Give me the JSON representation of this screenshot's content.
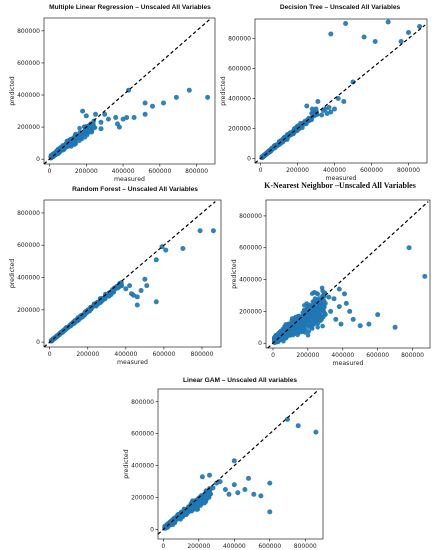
{
  "figure": {
    "chart_data": [
      {
        "type": "scatter",
        "title": "Multiple Linear Regression – Unscaled All Variables",
        "xlabel": "measured",
        "ylabel": "predicted",
        "xlim": [
          -30000,
          900000
        ],
        "ylim": [
          -30000,
          880000
        ],
        "xticks": [
          0,
          200000,
          400000,
          600000,
          800000
        ],
        "yticks": [
          0,
          200000,
          400000,
          600000,
          800000
        ],
        "tick_labels_x": [
          "0",
          "200000",
          "400000",
          "600000",
          "800000"
        ],
        "tick_labels_y": [
          "0",
          "200000",
          "400000",
          "600000",
          "800000"
        ],
        "reference_line": "y = x (dashed)",
        "cloud": {
          "n": 440,
          "xmax": 240000,
          "slope": 0.85,
          "spread": 0.22,
          "offset": 8000
        },
        "outliers": [
          [
            280000,
            230000
          ],
          [
            320000,
            250000
          ],
          [
            360000,
            260000
          ],
          [
            370000,
            220000
          ],
          [
            380000,
            200000
          ],
          [
            300000,
            280000
          ],
          [
            250000,
            280000
          ],
          [
            400000,
            250000
          ],
          [
            420000,
            260000
          ],
          [
            460000,
            260000
          ],
          [
            520000,
            280000
          ],
          [
            280000,
            190000
          ],
          [
            180000,
            300000
          ],
          [
            200000,
            270000
          ],
          [
            430000,
            430000
          ],
          [
            520000,
            350000
          ],
          [
            560000,
            330000
          ],
          [
            620000,
            350000
          ],
          [
            690000,
            385000
          ],
          [
            760000,
            430000
          ],
          [
            860000,
            385000
          ]
        ]
      },
      {
        "type": "scatter",
        "title": "Decision Tree – Unscaled All Variables",
        "xlabel": "measured",
        "ylabel": "predicted",
        "xlim": [
          -30000,
          900000
        ],
        "ylim": [
          -30000,
          930000
        ],
        "xticks": [
          0,
          200000,
          400000,
          600000,
          800000
        ],
        "yticks": [
          0,
          200000,
          400000,
          600000,
          800000
        ],
        "tick_labels_x": [
          "0",
          "200000",
          "400000",
          "600000",
          "800000"
        ],
        "tick_labels_y": [
          "0",
          "200000",
          "400000",
          "600000",
          "800000"
        ],
        "reference_line": "y = x (dashed)",
        "cloud": {
          "n": 380,
          "xmax": 300000,
          "slope": 1.0,
          "spread": 0.12,
          "offset": 0
        },
        "outliers": [
          [
            330000,
            290000
          ],
          [
            340000,
            320000
          ],
          [
            350000,
            330000
          ],
          [
            300000,
            330000
          ],
          [
            280000,
            330000
          ],
          [
            360000,
            300000
          ],
          [
            310000,
            380000
          ],
          [
            250000,
            350000
          ],
          [
            380000,
            310000
          ],
          [
            400000,
            330000
          ],
          [
            370000,
            340000
          ],
          [
            420000,
            400000
          ],
          [
            450000,
            380000
          ],
          [
            500000,
            510000
          ],
          [
            380000,
            830000
          ],
          [
            460000,
            900000
          ],
          [
            560000,
            810000
          ],
          [
            620000,
            780000
          ],
          [
            690000,
            910000
          ],
          [
            760000,
            780000
          ],
          [
            800000,
            840000
          ],
          [
            860000,
            880000
          ]
        ]
      },
      {
        "type": "scatter",
        "title": "Random Forest – Unscaled All Variables",
        "xlabel": "measured",
        "ylabel": "predicted",
        "xlim": [
          -30000,
          900000
        ],
        "ylim": [
          -30000,
          880000
        ],
        "xticks": [
          0,
          200000,
          400000,
          600000,
          800000
        ],
        "yticks": [
          0,
          200000,
          400000,
          600000,
          800000
        ],
        "tick_labels_x": [
          "0",
          "200000",
          "400000",
          "600000",
          "800000"
        ],
        "tick_labels_y": [
          "0",
          "200000",
          "400000",
          "600000",
          "800000"
        ],
        "reference_line": "y = x (dashed)",
        "cloud": {
          "n": 420,
          "xmax": 380000,
          "slope": 0.96,
          "spread": 0.07,
          "offset": 0
        },
        "outliers": [
          [
            400000,
            330000
          ],
          [
            420000,
            350000
          ],
          [
            430000,
            300000
          ],
          [
            440000,
            290000
          ],
          [
            460000,
            280000
          ],
          [
            480000,
            320000
          ],
          [
            510000,
            350000
          ],
          [
            460000,
            230000
          ],
          [
            560000,
            250000
          ],
          [
            500000,
            390000
          ],
          [
            560000,
            510000
          ],
          [
            590000,
            590000
          ],
          [
            610000,
            570000
          ],
          [
            700000,
            580000
          ],
          [
            790000,
            690000
          ],
          [
            860000,
            690000
          ]
        ]
      },
      {
        "type": "scatter",
        "title": "K-Nearest Neighbor –Unscaled  All Variables",
        "xlabel": "measured",
        "ylabel": "predicted",
        "xlim": [
          -40000,
          900000
        ],
        "ylim": [
          -30000,
          900000
        ],
        "xticks": [
          0,
          200000,
          400000,
          600000,
          800000
        ],
        "yticks": [
          0,
          200000,
          400000,
          600000,
          800000
        ],
        "tick_labels_x": [
          "0",
          "200000",
          "400000",
          "600000",
          "800000"
        ],
        "tick_labels_y": [
          "0",
          "200000",
          "400000",
          "600000",
          "800000"
        ],
        "reference_line": "y = x (dashed)",
        "cloud": {
          "n": 700,
          "xmax": 290000,
          "slope": 0.75,
          "spread": 0.5,
          "offset": 15000
        },
        "outliers": [
          [
            300000,
            250000
          ],
          [
            320000,
            290000
          ],
          [
            350000,
            280000
          ],
          [
            380000,
            230000
          ],
          [
            330000,
            200000
          ],
          [
            360000,
            150000
          ],
          [
            390000,
            120000
          ],
          [
            300000,
            180000
          ],
          [
            420000,
            250000
          ],
          [
            460000,
            150000
          ],
          [
            500000,
            110000
          ],
          [
            550000,
            120000
          ],
          [
            440000,
            200000
          ],
          [
            410000,
            310000
          ],
          [
            380000,
            340000
          ],
          [
            600000,
            180000
          ],
          [
            700000,
            100000
          ],
          [
            780000,
            600000
          ],
          [
            870000,
            420000
          ]
        ]
      },
      {
        "type": "scatter",
        "title": "Linear GAM – Unscaled All variables",
        "xlabel": "measured",
        "ylabel": "predicted",
        "xlim": [
          -30000,
          900000
        ],
        "ylim": [
          -60000,
          880000
        ],
        "xticks": [
          0,
          200000,
          400000,
          600000,
          800000
        ],
        "yticks": [
          0,
          200000,
          400000,
          600000,
          800000
        ],
        "tick_labels_x": [
          "0",
          "200000",
          "400000",
          "600000",
          "800000"
        ],
        "tick_labels_y": [
          "0",
          "200000",
          "400000",
          "600000",
          "800000"
        ],
        "reference_line": "y = x (dashed)",
        "cloud": {
          "n": 460,
          "xmax": 260000,
          "slope": 0.85,
          "spread": 0.22,
          "offset": 5000
        },
        "outliers": [
          [
            280000,
            260000
          ],
          [
            300000,
            290000
          ],
          [
            320000,
            300000
          ],
          [
            260000,
            340000
          ],
          [
            220000,
            330000
          ],
          [
            350000,
            250000
          ],
          [
            370000,
            220000
          ],
          [
            400000,
            280000
          ],
          [
            420000,
            230000
          ],
          [
            460000,
            250000
          ],
          [
            480000,
            320000
          ],
          [
            510000,
            220000
          ],
          [
            550000,
            210000
          ],
          [
            400000,
            430000
          ],
          [
            600000,
            290000
          ],
          [
            600000,
            110000
          ],
          [
            700000,
            690000
          ],
          [
            760000,
            650000
          ],
          [
            860000,
            610000
          ]
        ]
      }
    ]
  }
}
